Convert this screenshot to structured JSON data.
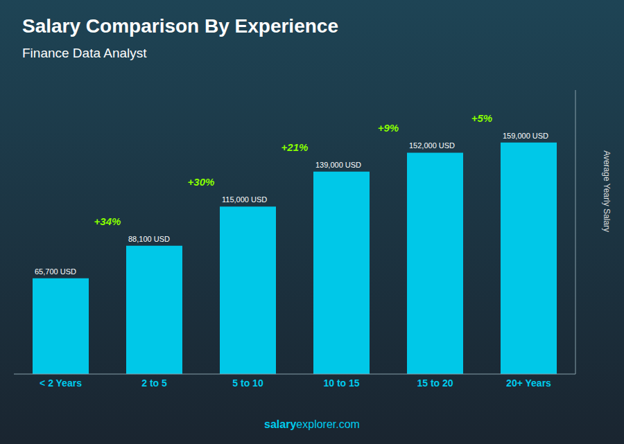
{
  "chart_data": {
    "type": "bar",
    "title": "Salary Comparison By Experience",
    "subtitle": "Finance Data Analyst",
    "categories": [
      "< 2 Years",
      "2 to 5",
      "5 to 10",
      "10 to 15",
      "15 to 20",
      "20+ Years"
    ],
    "values": [
      65700,
      88100,
      115000,
      139000,
      152000,
      159000
    ],
    "value_labels": [
      "65,700 USD",
      "88,100 USD",
      "115,000 USD",
      "139,000 USD",
      "152,000 USD",
      "159,000 USD"
    ],
    "data_labels": true,
    "color": "#00C8E8",
    "ylabel": "Average Yearly Salary",
    "ylim": [
      0,
      195000
    ],
    "tick_labels": "x",
    "grid": false,
    "annotations": [
      "+34%",
      "+30%",
      "+21%",
      "+9%",
      "+5%"
    ],
    "footer": [
      "salary",
      "explorer.com"
    ]
  }
}
